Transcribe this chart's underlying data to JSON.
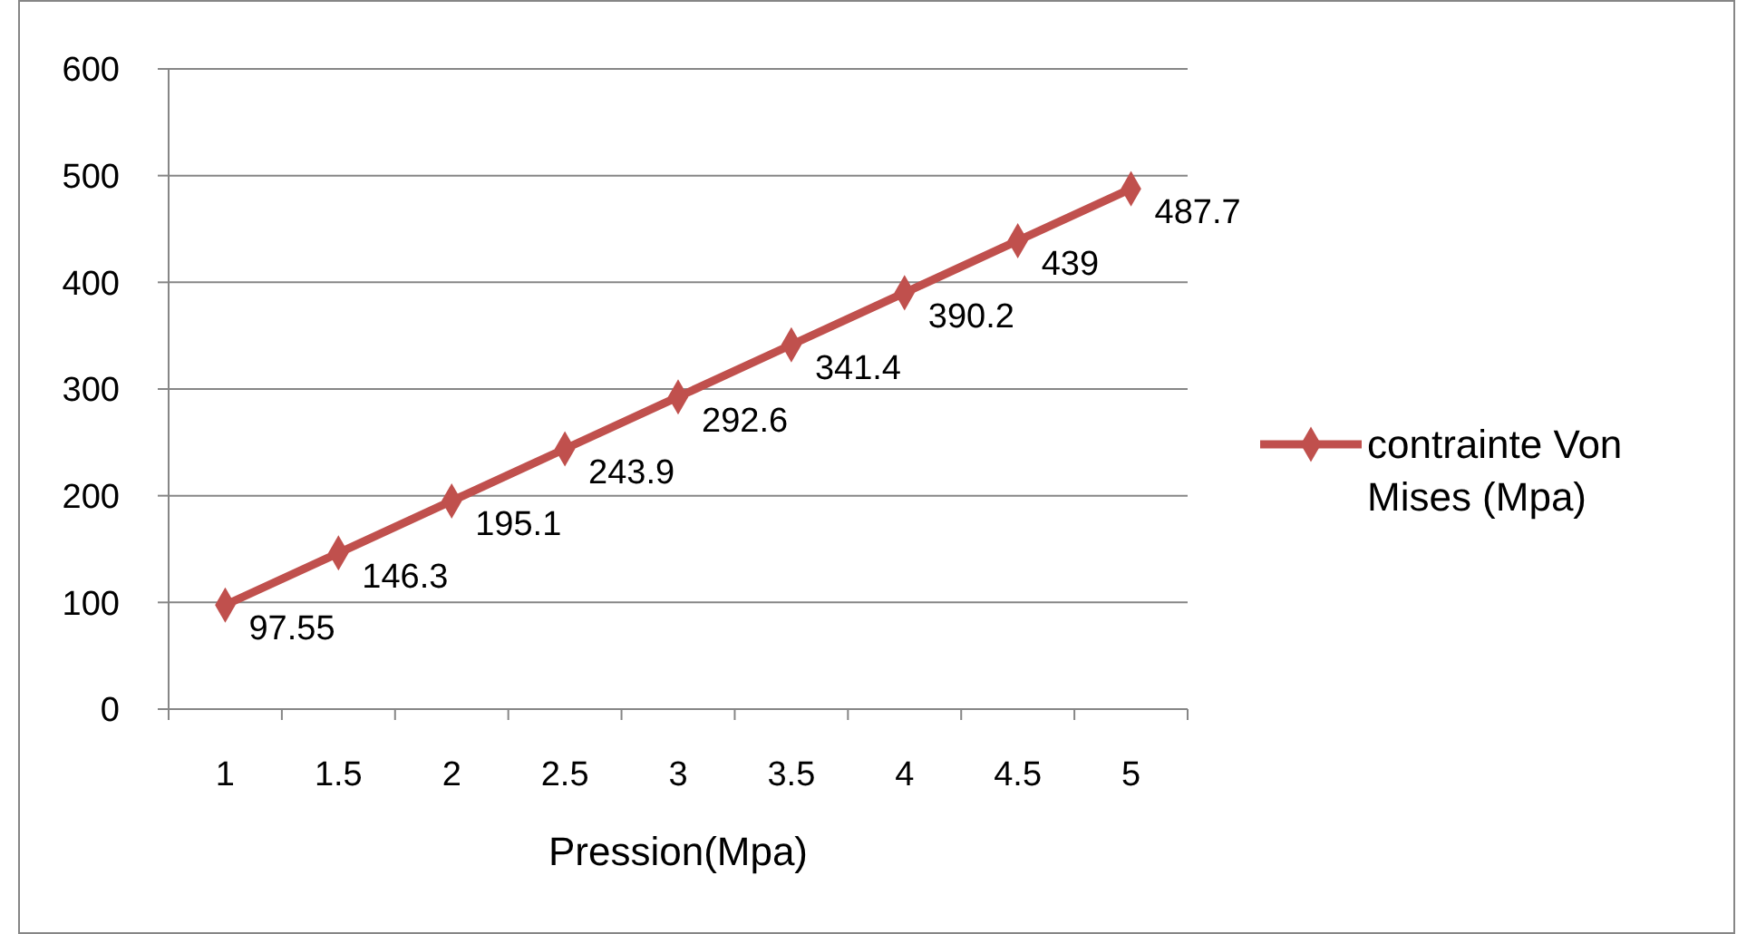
{
  "chart_data": {
    "type": "line",
    "xlabel": "Pression(Mpa)",
    "categories": [
      "1",
      "1.5",
      "2",
      "2.5",
      "3",
      "3.5",
      "4",
      "4.5",
      "5"
    ],
    "series": [
      {
        "name": "contrainte Von Mises (Mpa)",
        "color": "#c0504d",
        "values": [
          97.55,
          146.3,
          195.1,
          243.9,
          292.6,
          341.4,
          390.2,
          439,
          487.7
        ]
      }
    ],
    "ylim": [
      0,
      600
    ],
    "yticks": [
      0,
      100,
      200,
      300,
      400,
      500,
      600
    ],
    "grid": "y",
    "legend": "right",
    "marker": "diamond",
    "line_style": "solid",
    "data_labels": true
  }
}
